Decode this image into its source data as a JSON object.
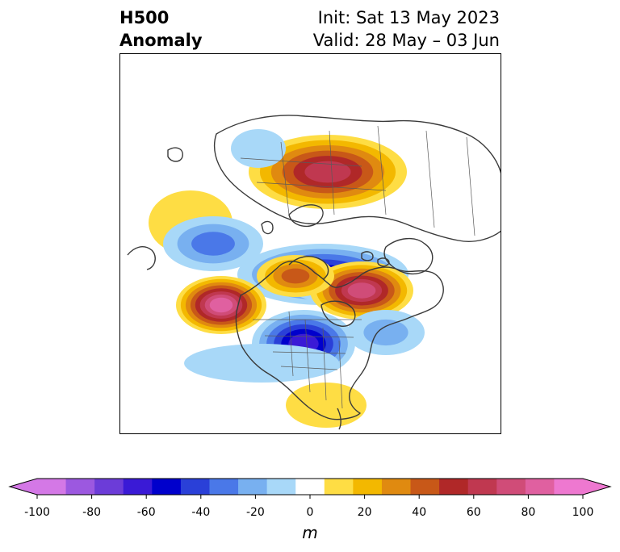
{
  "title": {
    "left_line1": "H500",
    "left_line2": "Anomaly",
    "right_line1": "Init: Sat 13 May 2023",
    "right_line2": "Valid: 28 May – 03 Jun"
  },
  "colorbar": {
    "unit": "m",
    "tick_labels": [
      "-100",
      "-80",
      "-60",
      "-40",
      "-20",
      "0",
      "20",
      "40",
      "60",
      "80",
      "100"
    ],
    "levels": [
      -100,
      -90,
      -80,
      -70,
      -60,
      -50,
      -40,
      -30,
      -20,
      -10,
      10,
      20,
      30,
      40,
      50,
      60,
      70,
      80,
      90,
      100
    ],
    "colors": [
      "#d478e6",
      "#9c58e0",
      "#6c3cd8",
      "#3a1ad6",
      "#0000cc",
      "#2a40d8",
      "#4a78e8",
      "#78b0f0",
      "#a8d8f8",
      "#ffffff",
      "#fedd44",
      "#f3b800",
      "#e08a10",
      "#c85818",
      "#b02828",
      "#c03850",
      "#d04c78",
      "#e060a0",
      "#ee78d0"
    ],
    "under_color": "#d478e6",
    "over_color": "#ee78d0"
  },
  "map_colors": {
    "coast": "#3a3a3a",
    "border": "#5a5a5a"
  }
}
